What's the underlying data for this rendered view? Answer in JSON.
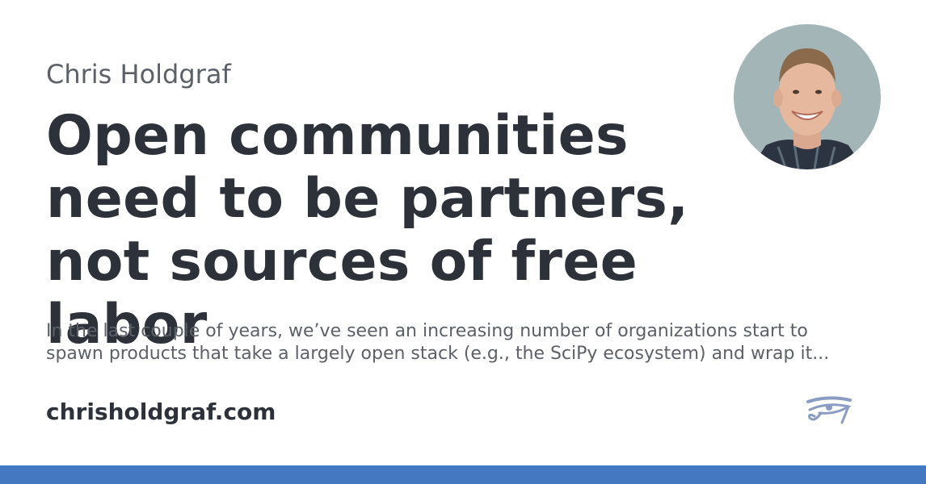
{
  "card": {
    "author": "Chris Holdgraf",
    "title": "Open communities need to be partners, not sources of free labor",
    "description": "In the last couple of years, we’ve seen an increasing number of organizations start to spawn products that take a largely open stack (e.g., the SciPy ecosystem) and wrap it...",
    "site": "chrisholdgraf.com"
  },
  "icons": {
    "avatar": "author-photo",
    "logo": "eye-of-horus-logo"
  },
  "colors": {
    "background": "#ffffff",
    "title_text": "#2d323a",
    "muted_text": "#5c6068",
    "accent_bar": "#4478c0",
    "logo": "#8a9cc4",
    "avatar_bg": "#a3b5b6"
  }
}
